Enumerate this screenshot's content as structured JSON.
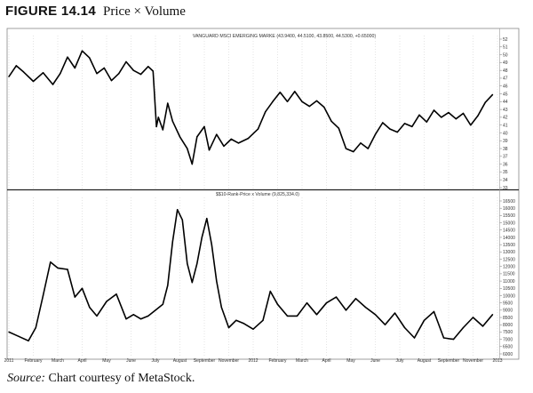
{
  "figure": {
    "number": "FIGURE 14.14",
    "caption": "Price × Volume",
    "source_label": "Source:",
    "source_text": " Chart courtesy of MetaStock."
  },
  "chart_data": [
    {
      "type": "line",
      "title": "VANGUARD MSCI EMERGING MARKE (43.9400, 44.5100, 43.8500, 44.5300, +0.65000)",
      "ylim": [
        33,
        52
      ],
      "yticks": [
        33,
        34,
        35,
        36,
        37,
        38,
        39,
        40,
        41,
        42,
        43,
        44,
        45,
        46,
        47,
        48,
        49,
        50,
        51,
        52
      ],
      "grid": true,
      "x_range": [
        0,
        100
      ],
      "series": [
        {
          "x": [
            0,
            1.5,
            3,
            5,
            7,
            9,
            10.5,
            12,
            13.5,
            15,
            16.5,
            18,
            19.5,
            21,
            22.5,
            24,
            25.5,
            27,
            28.5,
            29.5,
            30.2,
            30.6,
            31.5,
            32.5,
            33.5,
            35,
            36.5,
            37.5,
            38.5,
            40,
            41,
            42.5,
            44,
            45.5,
            47,
            49,
            51,
            52.5,
            54,
            55.5,
            57,
            58.5,
            60,
            61.5,
            63,
            64.5,
            66,
            67.5,
            69,
            70.5,
            72,
            73.5,
            75,
            76.5,
            78,
            79.5,
            81,
            82.5,
            84,
            85.5,
            87,
            88.5,
            90,
            91.5,
            93,
            94.5,
            96,
            97.5,
            99
          ],
          "values": [
            47.2,
            48.6,
            47.8,
            46.6,
            47.7,
            46.2,
            47.6,
            49.7,
            48.3,
            50.5,
            49.6,
            47.6,
            48.3,
            46.7,
            47.6,
            49.1,
            48.0,
            47.5,
            48.5,
            47.9,
            40.8,
            42.0,
            40.4,
            43.8,
            41.5,
            39.5,
            38.0,
            36.0,
            39.5,
            40.8,
            37.8,
            39.8,
            38.3,
            39.2,
            38.7,
            39.3,
            40.5,
            42.7,
            44.0,
            45.2,
            44.0,
            45.3,
            44.0,
            43.4,
            44.1,
            43.3,
            41.5,
            40.6,
            38.0,
            37.6,
            38.7,
            38.0,
            39.8,
            41.3,
            40.5,
            40.1,
            41.2,
            40.8,
            42.3,
            41.4,
            42.9,
            42.0,
            42.6,
            41.8,
            42.5,
            41.0,
            42.2,
            43.9,
            44.9
          ]
        }
      ]
    },
    {
      "type": "line",
      "title": "$$10-Rank-Price x Volume (9,825,334.0)",
      "ylim": [
        6000,
        16500
      ],
      "yticks": [
        6000,
        6500,
        7000,
        7500,
        8000,
        8500,
        9000,
        9500,
        10000,
        10500,
        11000,
        11500,
        12000,
        12500,
        13000,
        13500,
        14000,
        14500,
        15000,
        15500,
        16000,
        16500
      ],
      "grid": true,
      "x_range": [
        0,
        100
      ],
      "x_tick_labels": [
        "2011",
        "February",
        "March",
        "April",
        "May",
        "June",
        "July",
        "August",
        "September",
        "November",
        "2012",
        "February",
        "March",
        "April",
        "May",
        "June",
        "July",
        "August",
        "September",
        "November",
        "2013"
      ],
      "series": [
        {
          "x": [
            0,
            2,
            4,
            5.5,
            7,
            8.5,
            10,
            12,
            13.5,
            15,
            16.5,
            18,
            20,
            22,
            24,
            25.5,
            27,
            28.5,
            30,
            31.5,
            32.5,
            33.5,
            34.5,
            35.5,
            36.5,
            37.5,
            38.5,
            39.5,
            40.5,
            41.5,
            42.5,
            43.5,
            45,
            46.5,
            48,
            50,
            52,
            53.5,
            55,
            57,
            59,
            61,
            63,
            65,
            67,
            69,
            71,
            73,
            75,
            77,
            79,
            81,
            83,
            85,
            87,
            89,
            91,
            93,
            95,
            97,
            99
          ],
          "values": [
            7500,
            7200,
            6900,
            7800,
            10000,
            12300,
            11900,
            11800,
            9900,
            10500,
            9200,
            8600,
            9600,
            10100,
            8400,
            8700,
            8400,
            8600,
            9000,
            9400,
            10700,
            13700,
            15900,
            15200,
            12200,
            10900,
            12200,
            14000,
            15300,
            13500,
            11000,
            9200,
            7800,
            8300,
            8100,
            7700,
            8300,
            10300,
            9400,
            8600,
            8600,
            9500,
            8700,
            9500,
            9900,
            9000,
            9800,
            9200,
            8700,
            8000,
            8800,
            7800,
            7100,
            8300,
            8900,
            7100,
            7000,
            7800,
            8500,
            7900,
            8700
          ]
        }
      ]
    }
  ]
}
